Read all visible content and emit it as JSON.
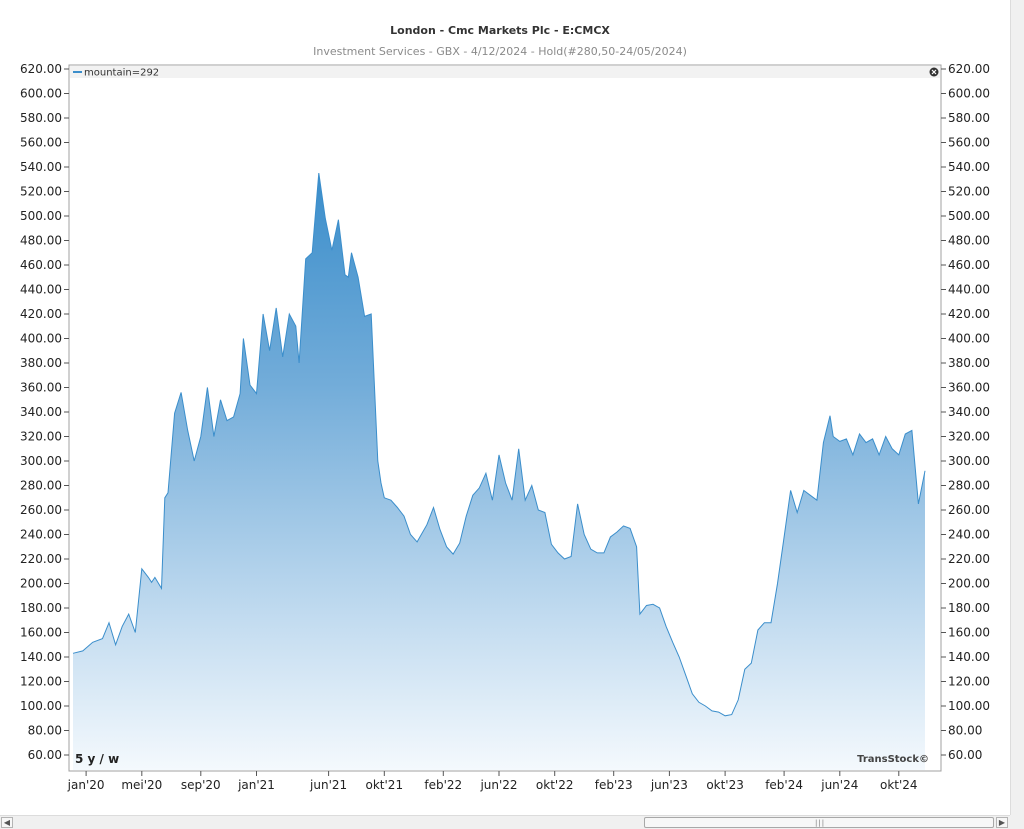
{
  "chart_data": {
    "type": "area",
    "title": "London - Cmc Markets Plc - E:CMCX",
    "subtitle": "Investment Services - GBX - 4/12/2024 - Hold(#280,50-24/05/2024)",
    "legend": "mountain=292",
    "period_label": "5 y / w",
    "watermark": "TransStock©",
    "ylim": [
      50,
      630
    ],
    "y_ticks": [
      "620.00",
      "600.00",
      "580.00",
      "560.00",
      "540.00",
      "520.00",
      "500.00",
      "480.00",
      "460.00",
      "440.00",
      "420.00",
      "400.00",
      "380.00",
      "360.00",
      "340.00",
      "320.00",
      "300.00",
      "280.00",
      "260.00",
      "240.00",
      "220.00",
      "200.00",
      "180.00",
      "160.00",
      "140.00",
      "120.00",
      "100.00",
      "80.00",
      "60.00"
    ],
    "x_ticks": [
      {
        "label": "jan'20",
        "x": "2020-01-06"
      },
      {
        "label": "mei'20",
        "x": "2020-05-04"
      },
      {
        "label": "sep'20",
        "x": "2020-09-07"
      },
      {
        "label": "jan'21",
        "x": "2021-01-04"
      },
      {
        "label": "jun'21",
        "x": "2021-06-07"
      },
      {
        "label": "okt'21",
        "x": "2021-10-04"
      },
      {
        "label": "feb'22",
        "x": "2022-02-07"
      },
      {
        "label": "jun'22",
        "x": "2022-06-06"
      },
      {
        "label": "okt'22",
        "x": "2022-10-03"
      },
      {
        "label": "feb'23",
        "x": "2023-02-06"
      },
      {
        "label": "jun'23",
        "x": "2023-06-05"
      },
      {
        "label": "okt'23",
        "x": "2023-10-02"
      },
      {
        "label": "feb'24",
        "x": "2024-02-05"
      },
      {
        "label": "jun'24",
        "x": "2024-06-03"
      },
      {
        "label": "okt'24",
        "x": "2024-10-07"
      }
    ],
    "series": [
      {
        "x": [
          "2019-12-09",
          "2019-12-30",
          "2020-01-20",
          "2020-02-10",
          "2020-02-24",
          "2020-03-09",
          "2020-03-23",
          "2020-04-06",
          "2020-04-20",
          "2020-05-04",
          "2020-05-18",
          "2020-05-25",
          "2020-06-01",
          "2020-06-15",
          "2020-06-22",
          "2020-06-29",
          "2020-07-13",
          "2020-07-27",
          "2020-08-10",
          "2020-08-24",
          "2020-09-07",
          "2020-09-21",
          "2020-10-05",
          "2020-10-19",
          "2020-11-02",
          "2020-11-16",
          "2020-11-30",
          "2020-12-07",
          "2020-12-21",
          "2021-01-04",
          "2021-01-18",
          "2021-02-01",
          "2021-02-15",
          "2021-03-01",
          "2021-03-15",
          "2021-03-29",
          "2021-04-05",
          "2021-04-19",
          "2021-05-03",
          "2021-05-17",
          "2021-05-31",
          "2021-06-14",
          "2021-06-28",
          "2021-07-12",
          "2021-07-19",
          "2021-07-26",
          "2021-08-09",
          "2021-08-23",
          "2021-09-06",
          "2021-09-20",
          "2021-09-27",
          "2021-10-04",
          "2021-10-18",
          "2021-11-01",
          "2021-11-15",
          "2021-11-29",
          "2021-12-13",
          "2022-01-03",
          "2022-01-17",
          "2022-01-31",
          "2022-02-14",
          "2022-02-28",
          "2022-03-14",
          "2022-03-28",
          "2022-04-11",
          "2022-04-25",
          "2022-05-09",
          "2022-05-23",
          "2022-06-06",
          "2022-06-20",
          "2022-07-04",
          "2022-07-18",
          "2022-08-01",
          "2022-08-15",
          "2022-08-29",
          "2022-09-12",
          "2022-09-26",
          "2022-10-10",
          "2022-10-24",
          "2022-11-07",
          "2022-11-21",
          "2022-12-05",
          "2022-12-19",
          "2023-01-02",
          "2023-01-16",
          "2023-01-30",
          "2023-02-13",
          "2023-02-27",
          "2023-03-13",
          "2023-03-27",
          "2023-04-03",
          "2023-04-17",
          "2023-05-01",
          "2023-05-15",
          "2023-05-29",
          "2023-06-12",
          "2023-06-26",
          "2023-07-10",
          "2023-07-24",
          "2023-08-07",
          "2023-08-21",
          "2023-09-04",
          "2023-09-18",
          "2023-10-02",
          "2023-10-16",
          "2023-10-30",
          "2023-11-13",
          "2023-11-27",
          "2023-12-11",
          "2023-12-25",
          "2024-01-08",
          "2024-01-22",
          "2024-02-05",
          "2024-02-19",
          "2024-03-04",
          "2024-03-18",
          "2024-04-01",
          "2024-04-15",
          "2024-04-29",
          "2024-05-13",
          "2024-05-20",
          "2024-06-03",
          "2024-06-17",
          "2024-07-01",
          "2024-07-15",
          "2024-07-29",
          "2024-08-12",
          "2024-08-26",
          "2024-09-09",
          "2024-09-23",
          "2024-10-07",
          "2024-10-21",
          "2024-11-04",
          "2024-11-18",
          "2024-12-02"
        ],
        "y": [
          143,
          145,
          152,
          155,
          168,
          150,
          165,
          175,
          160,
          212,
          205,
          201,
          205,
          196,
          270,
          274,
          339,
          356,
          325,
          300,
          320,
          360,
          320,
          350,
          333,
          336,
          355,
          400,
          362,
          355,
          420,
          390,
          425,
          385,
          420,
          410,
          380,
          465,
          470,
          535,
          498,
          472,
          497,
          452,
          450,
          470,
          450,
          418,
          420,
          300,
          282,
          270,
          268,
          262,
          255,
          240,
          234,
          248,
          262,
          244,
          230,
          224,
          233,
          255,
          272,
          278,
          290,
          268,
          305,
          282,
          268,
          310,
          268,
          280,
          260,
          258,
          232,
          225,
          220,
          222,
          265,
          240,
          228,
          225,
          225,
          238,
          242,
          247,
          245,
          230,
          175,
          182,
          183,
          180,
          165,
          152,
          140,
          125,
          110,
          103,
          100,
          96,
          95,
          92,
          93,
          105,
          130,
          135,
          162,
          168,
          168,
          200,
          238,
          276,
          258,
          276,
          272,
          268,
          315,
          337,
          320,
          316,
          318,
          305,
          322,
          315,
          318,
          305,
          320,
          310,
          305,
          322,
          325,
          265,
          292
        ]
      }
    ]
  }
}
